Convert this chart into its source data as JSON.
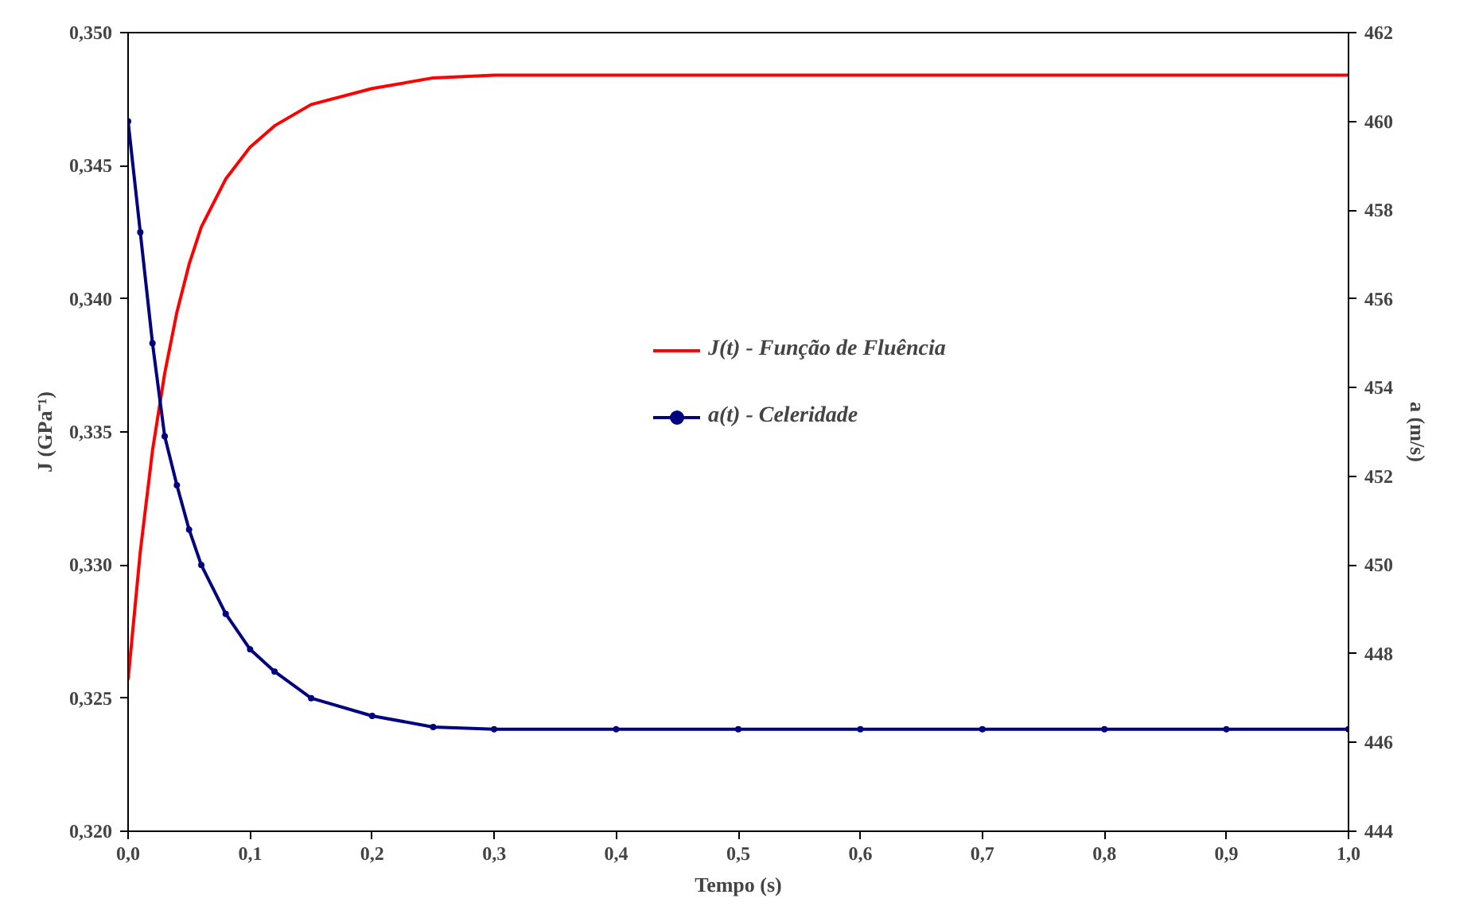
{
  "chart_data": {
    "type": "line",
    "xlabel": "Tempo (s)",
    "ylabel": "J (GPa⁻¹)",
    "y2label": "a (m/s)",
    "xlim": [
      0,
      1
    ],
    "ylim": [
      0.32,
      0.35
    ],
    "y2lim": [
      444,
      462
    ],
    "xticks": [
      {
        "value": 0,
        "label": "0,0"
      },
      {
        "value": 0.1,
        "label": "0,1"
      },
      {
        "value": 0.2,
        "label": "0,2"
      },
      {
        "value": 0.3,
        "label": "0,3"
      },
      {
        "value": 0.4,
        "label": "0,4"
      },
      {
        "value": 0.5,
        "label": "0,5"
      },
      {
        "value": 0.6,
        "label": "0,6"
      },
      {
        "value": 0.7,
        "label": "0,7"
      },
      {
        "value": 0.8,
        "label": "0,8"
      },
      {
        "value": 0.9,
        "label": "0,9"
      },
      {
        "value": 1,
        "label": "1,0"
      }
    ],
    "yticks": [
      {
        "value": 0.32,
        "label": "0,320"
      },
      {
        "value": 0.325,
        "label": "0,325"
      },
      {
        "value": 0.33,
        "label": "0,330"
      },
      {
        "value": 0.335,
        "label": "0,335"
      },
      {
        "value": 0.34,
        "label": "0,340"
      },
      {
        "value": 0.345,
        "label": "0,345"
      },
      {
        "value": 0.35,
        "label": "0,350"
      }
    ],
    "y2ticks": [
      444,
      446,
      448,
      450,
      452,
      454,
      456,
      458,
      460,
      462
    ],
    "grid": false,
    "legend": "center",
    "x": [
      0,
      0.01,
      0.02,
      0.03,
      0.04,
      0.05,
      0.06,
      0.08,
      0.1,
      0.12,
      0.15,
      0.2,
      0.25,
      0.3,
      0.4,
      0.5,
      0.6,
      0.7,
      0.8,
      0.9,
      1.0
    ],
    "series": [
      {
        "name": "J(t) - Função de Fluência",
        "color": "#ff0000",
        "marker": "none",
        "values": [
          0.3257,
          0.3305,
          0.3343,
          0.3372,
          0.3395,
          0.3413,
          0.3427,
          0.3445,
          0.3457,
          0.3465,
          0.3473,
          0.3479,
          0.3483,
          0.3484,
          0.3484,
          0.3484,
          0.3484,
          0.3484,
          0.3484,
          0.3484,
          0.3484
        ]
      },
      {
        "name": "a(t) - Celeridade",
        "color": "#000080",
        "marker": "circle",
        "axis": "y2",
        "values": [
          460.0,
          457.5,
          455.0,
          452.9,
          451.8,
          450.8,
          450.0,
          448.9,
          448.1,
          447.6,
          447.0,
          446.6,
          446.35,
          446.3,
          446.3,
          446.3,
          446.3,
          446.3,
          446.3,
          446.3,
          446.3
        ]
      }
    ]
  }
}
